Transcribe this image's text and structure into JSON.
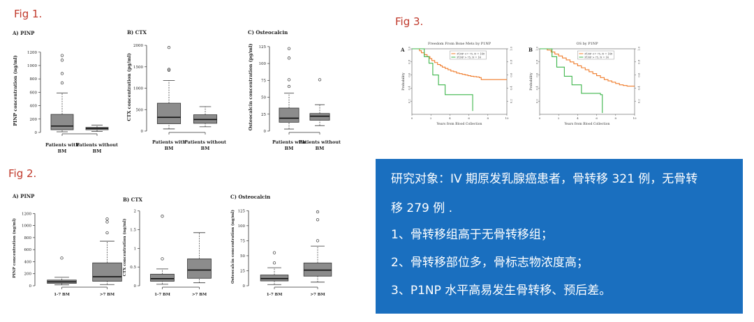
{
  "figures": {
    "fig1": {
      "label": "Fig 1."
    },
    "fig2": {
      "label": "Fig 2."
    },
    "fig3": {
      "label": "Fig 3."
    }
  },
  "summary": {
    "lines": [
      "研究对象：IV 期原发乳腺癌患者，骨转移 321 例，无骨转",
      "移 279 例 .",
      "1、骨转移组高于无骨转移组；",
      "2、骨转移部位多，骨标志物浓度高；",
      "3、P1NP 水平高易发生骨转移、预后差。"
    ]
  },
  "chart_data": [
    {
      "id": "fig1a",
      "type": "box",
      "title": "A) PINP",
      "ylabel": "PINP concentration (ng/ml)",
      "ylim": [
        0,
        1250
      ],
      "yticks": [
        0,
        200,
        400,
        600,
        800,
        1000,
        1200
      ],
      "categories": [
        "Patients with BM",
        "Patients without BM"
      ],
      "boxes": [
        {
          "q1": 40,
          "median": 95,
          "q3": 270,
          "whisker_low": 10,
          "whisker_high": 590,
          "outliers": [
            740,
            880,
            1080,
            1150
          ]
        },
        {
          "q1": 40,
          "median": 60,
          "q3": 75,
          "whisker_low": 15,
          "whisker_high": 110,
          "outliers": []
        }
      ]
    },
    {
      "id": "fig1b",
      "type": "box",
      "title": "B) CTX",
      "ylabel": "CTX concentration (pg/ml)",
      "ylim": [
        0,
        2050
      ],
      "yticks": [
        0,
        500,
        1000,
        1500,
        2000
      ],
      "categories": [
        "Patients with BM",
        "Patients without BM"
      ],
      "boxes": [
        {
          "q1": 170,
          "median": 320,
          "q3": 650,
          "whisker_low": 50,
          "whisker_high": 1180,
          "outliers": [
            1420,
            1440,
            1950
          ]
        },
        {
          "q1": 180,
          "median": 270,
          "q3": 380,
          "whisker_low": 100,
          "whisker_high": 570,
          "outliers": []
        }
      ]
    },
    {
      "id": "fig1c",
      "type": "box",
      "title": "C) Osteocalcin",
      "ylabel": "Osteocalcin concentration (pg/ml)",
      "ylim": [
        0,
        130
      ],
      "yticks": [
        0,
        25,
        50,
        75,
        100,
        125
      ],
      "categories": [
        "Patients with BM",
        "Patients without BM"
      ],
      "boxes": [
        {
          "q1": 13,
          "median": 19,
          "q3": 34,
          "whisker_low": 3,
          "whisker_high": 56,
          "outliers": [
            66,
            76,
            108,
            122
          ]
        },
        {
          "q1": 16,
          "median": 22,
          "q3": 26,
          "whisker_low": 8,
          "whisker_high": 39,
          "outliers": [
            76
          ]
        }
      ]
    },
    {
      "id": "fig2a",
      "type": "box",
      "title": "A) PINP",
      "ylabel": "PINP concentration (ng/ml)",
      "ylim": [
        0,
        1250
      ],
      "yticks": [
        0,
        200,
        400,
        600,
        800,
        1000,
        1200
      ],
      "categories": [
        "1-7 BM",
        ">7 BM"
      ],
      "boxes": [
        {
          "q1": 40,
          "median": 65,
          "q3": 95,
          "whisker_low": 15,
          "whisker_high": 140,
          "outliers": [
            460
          ]
        },
        {
          "q1": 75,
          "median": 150,
          "q3": 380,
          "whisker_low": 20,
          "whisker_high": 740,
          "outliers": [
            880,
            1060,
            1110
          ]
        }
      ]
    },
    {
      "id": "fig2b",
      "type": "box",
      "title": "B) CTX",
      "ylabel": "CTX concentration (ng/ml)",
      "ylim": [
        0,
        2.05
      ],
      "yticks": [
        0,
        0.5,
        1,
        1.5,
        2
      ],
      "categories": [
        "1-7 BM",
        ">7 BM"
      ],
      "boxes": [
        {
          "q1": 0.12,
          "median": 0.19,
          "q3": 0.31,
          "whisker_low": 0.04,
          "whisker_high": 0.45,
          "outliers": [
            0.72,
            1.86
          ]
        },
        {
          "q1": 0.2,
          "median": 0.42,
          "q3": 0.72,
          "whisker_low": 0.08,
          "whisker_high": 1.42,
          "outliers": []
        }
      ]
    },
    {
      "id": "fig2c",
      "type": "box",
      "title": "C) Osteocalcin",
      "ylabel": "Osteocalcin concentration (ng/ml)",
      "ylim": [
        0,
        130
      ],
      "yticks": [
        0,
        25,
        50,
        75,
        100,
        125
      ],
      "categories": [
        "1-7 BM",
        ">7 BM"
      ],
      "boxes": [
        {
          "q1": 8,
          "median": 12,
          "q3": 18,
          "whisker_low": 2,
          "whisker_high": 30,
          "outliers": [
            38,
            55
          ]
        },
        {
          "q1": 16,
          "median": 26,
          "q3": 38,
          "whisker_low": 6,
          "whisker_high": 66,
          "outliers": [
            75,
            110,
            123
          ]
        }
      ]
    },
    {
      "id": "fig3a",
      "type": "line",
      "panel_letter": "A",
      "title": "Freedom From Bone Mets by P1NP",
      "xlabel": "Years from Blood Collection",
      "ylabel": "Probability",
      "xlim": [
        0,
        10
      ],
      "ylim": [
        0,
        1
      ],
      "xticks": [
        0,
        2,
        4,
        6,
        8,
        10
      ],
      "yticks": [
        0.2,
        0.4,
        0.6,
        0.8,
        1.0
      ],
      "series": [
        {
          "name": "P1NP <= 75, N = 148",
          "color": "#ef7b2a",
          "x": [
            0,
            0.8,
            1.0,
            1.3,
            1.6,
            1.9,
            2.1,
            2.4,
            2.7,
            3.0,
            3.2,
            3.5,
            3.8,
            4.1,
            4.4,
            4.7,
            5.0,
            5.3,
            5.6,
            5.9,
            6.2,
            6.5,
            6.8,
            7.1,
            7.3,
            8,
            10
          ],
          "y": [
            1.0,
            0.97,
            0.94,
            0.91,
            0.88,
            0.85,
            0.82,
            0.79,
            0.76,
            0.74,
            0.72,
            0.7,
            0.68,
            0.66,
            0.65,
            0.63,
            0.62,
            0.61,
            0.6,
            0.59,
            0.58,
            0.575,
            0.57,
            0.56,
            0.53,
            0.53,
            0.53
          ]
        },
        {
          "name": "P1NP > 75, N = 14",
          "color": "#3cb54a",
          "x": [
            0,
            1.0,
            1.3,
            1.8,
            2.2,
            2.8,
            3.5,
            6.2,
            6.4
          ],
          "y": [
            1.0,
            1.0,
            0.88,
            0.78,
            0.6,
            0.45,
            0.3,
            0.3,
            0.05
          ]
        }
      ]
    },
    {
      "id": "fig3b",
      "type": "line",
      "panel_letter": "B",
      "title": "OS by P1NP",
      "xlabel": "Years from Blood Collection",
      "ylabel": "Probability",
      "xlim": [
        0,
        10
      ],
      "ylim": [
        0,
        1
      ],
      "xticks": [
        0,
        2,
        4,
        6,
        8,
        10
      ],
      "yticks": [
        0.2,
        0.4,
        0.6,
        0.8,
        1.0
      ],
      "series": [
        {
          "name": "P1NP <= 75, N = 148",
          "color": "#ef7b2a",
          "x": [
            0,
            0.8,
            1.2,
            1.6,
            2.0,
            2.4,
            2.8,
            3.2,
            3.6,
            4.0,
            4.4,
            4.8,
            5.2,
            5.6,
            6.0,
            6.4,
            6.8,
            7.2,
            7.6,
            8.0,
            8.4,
            8.8,
            9.2,
            10
          ],
          "y": [
            1.0,
            0.98,
            0.95,
            0.92,
            0.89,
            0.86,
            0.83,
            0.8,
            0.77,
            0.74,
            0.71,
            0.68,
            0.65,
            0.62,
            0.59,
            0.56,
            0.53,
            0.51,
            0.49,
            0.47,
            0.45,
            0.44,
            0.43,
            0.43
          ]
        },
        {
          "name": "P1NP > 75, N = 14",
          "color": "#3cb54a",
          "x": [
            0,
            0.9,
            1.3,
            1.8,
            2.6,
            3.4,
            4.4,
            6.4,
            6.6
          ],
          "y": [
            1.0,
            1.0,
            0.88,
            0.72,
            0.58,
            0.45,
            0.32,
            0.3,
            0.02
          ]
        }
      ]
    }
  ]
}
